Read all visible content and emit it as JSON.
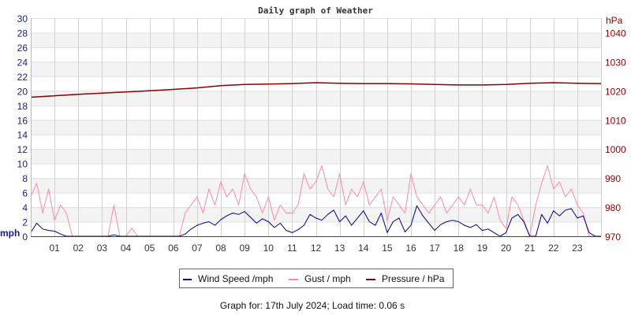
{
  "chart_data": {
    "type": "line",
    "title": "Daily graph of Weather",
    "ylabel_left": "mph",
    "ylabel_right": "hPa",
    "ylim_left": [
      0,
      30
    ],
    "ylim_right": [
      970,
      1045
    ],
    "xlim_hours": [
      0,
      24
    ],
    "left_ticks": [
      "0",
      "2",
      "4",
      "6",
      "8",
      "10",
      "12",
      "14",
      "16",
      "18",
      "20",
      "22",
      "24",
      "26",
      "28",
      "30"
    ],
    "right_ticks": [
      "970",
      "980",
      "990",
      "1000",
      "1010",
      "1020",
      "1030",
      "1040"
    ],
    "x_ticks": [
      "01",
      "02",
      "03",
      "04",
      "05",
      "06",
      "07",
      "08",
      "09",
      "10",
      "11",
      "12",
      "13",
      "14",
      "15",
      "16",
      "17",
      "18",
      "19",
      "20",
      "21",
      "22",
      "23"
    ],
    "grid": true,
    "legend_position": "bottom",
    "colors": {
      "wind": "#00008b",
      "gust": "#ff88aa",
      "pressure": "#8b0000",
      "left_axis": "#1a1a8a",
      "right_axis": "#8b0000",
      "band": "#f3f3f3",
      "grid": "#d0d0d0"
    },
    "sample_interval_minutes": 15,
    "series": [
      {
        "name": "Wind Speed /mph",
        "key": "wind",
        "axis": "left",
        "values": [
          0.5,
          1.8,
          1.0,
          0.8,
          0.7,
          0.3,
          0,
          0,
          0,
          0,
          0,
          0,
          0,
          0,
          0.2,
          0,
          0,
          0,
          0,
          0,
          0,
          0,
          0,
          0,
          0,
          0,
          0.3,
          1.0,
          1.5,
          1.8,
          2.0,
          1.5,
          2.3,
          2.8,
          3.2,
          3.0,
          3.4,
          2.6,
          1.8,
          2.4,
          2.0,
          1.2,
          1.8,
          0.8,
          0.5,
          0.9,
          1.5,
          3.0,
          2.5,
          2.2,
          3.0,
          3.6,
          2.0,
          2.8,
          1.5,
          2.5,
          3.5,
          2.0,
          1.5,
          3.2,
          0.5,
          2.0,
          2.5,
          0.6,
          1.5,
          4.2,
          2.8,
          1.8,
          0.8,
          1.6,
          2.0,
          2.2,
          2.0,
          1.5,
          1.2,
          1.6,
          0.8,
          1.0,
          0.5,
          0,
          0.5,
          2.5,
          3.0,
          2.0,
          0,
          0,
          3.0,
          1.8,
          3.5,
          2.8,
          3.6,
          3.8,
          2.5,
          2.8,
          0.5,
          0,
          0
        ]
      },
      {
        "name": "Gust / mph",
        "key": "gust",
        "axis": "left",
        "values": [
          5.4,
          7.3,
          3.2,
          6.5,
          2.2,
          4.3,
          3.2,
          0,
          0,
          0,
          0,
          0,
          0,
          0,
          4.3,
          0,
          0,
          1.1,
          0,
          0,
          0,
          0,
          0,
          0,
          0,
          0,
          3.2,
          4.3,
          5.4,
          3.2,
          6.5,
          4.3,
          7.5,
          5.4,
          6.5,
          4.3,
          8.6,
          6.5,
          5.4,
          3.2,
          5.4,
          2.2,
          4.3,
          3.2,
          3.2,
          4.3,
          8.6,
          6.5,
          7.5,
          9.7,
          6.5,
          5.4,
          8.6,
          4.3,
          6.5,
          5.4,
          7.5,
          4.3,
          5.4,
          6.5,
          2.2,
          5.4,
          4.3,
          3.2,
          8.6,
          5.4,
          4.3,
          3.2,
          4.3,
          5.4,
          3.2,
          4.3,
          5.4,
          4.3,
          6.5,
          4.3,
          4.3,
          3.2,
          5.4,
          2.2,
          1.1,
          5.4,
          4.3,
          2.2,
          0,
          4.3,
          7.3,
          9.7,
          6.5,
          7.5,
          5.4,
          6.5,
          4.3,
          3.2,
          0,
          0,
          0
        ]
      },
      {
        "name": "Pressure / hPa",
        "key": "pressure",
        "axis": "right",
        "sample_interval_minutes": 60,
        "values": [
          1017.8,
          1018.3,
          1018.8,
          1019.2,
          1019.6,
          1020.0,
          1020.5,
          1021.0,
          1021.8,
          1022.2,
          1022.3,
          1022.5,
          1022.8,
          1022.6,
          1022.5,
          1022.5,
          1022.4,
          1022.2,
          1022.0,
          1022.0,
          1022.2,
          1022.6,
          1022.8,
          1022.6,
          1022.5
        ]
      }
    ],
    "footer": "Graph for: 17th July 2024; Load time: 0.06 s"
  }
}
